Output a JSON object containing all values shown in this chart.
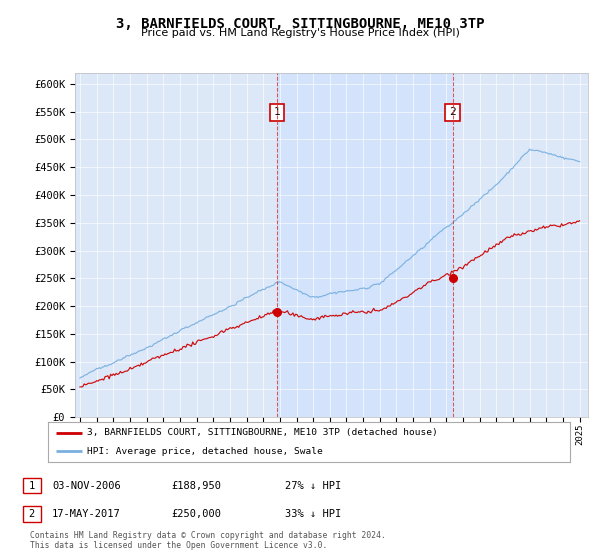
{
  "title": "3, BARNFIELDS COURT, SITTINGBOURNE, ME10 3TP",
  "subtitle": "Price paid vs. HM Land Registry's House Price Index (HPI)",
  "ylim": [
    0,
    620000
  ],
  "yticks": [
    0,
    50000,
    100000,
    150000,
    200000,
    250000,
    300000,
    350000,
    400000,
    450000,
    500000,
    550000,
    600000
  ],
  "ytick_labels": [
    "£0",
    "£50K",
    "£100K",
    "£150K",
    "£200K",
    "£250K",
    "£300K",
    "£350K",
    "£400K",
    "£450K",
    "£500K",
    "£550K",
    "£600K"
  ],
  "hpi_color": "#7ab0e0",
  "price_color": "#cc0000",
  "marker1_year": 2006.84,
  "marker1_price": 188950,
  "marker2_year": 2017.37,
  "marker2_price": 250000,
  "vline_color": "#dd4444",
  "shade_color": "#cce0ff",
  "legend_label_price": "3, BARNFIELDS COURT, SITTINGBOURNE, ME10 3TP (detached house)",
  "legend_label_hpi": "HPI: Average price, detached house, Swale",
  "table_row1": [
    "1",
    "03-NOV-2006",
    "£188,950",
    "27% ↓ HPI"
  ],
  "table_row2": [
    "2",
    "17-MAY-2017",
    "£250,000",
    "33% ↓ HPI"
  ],
  "footer": "Contains HM Land Registry data © Crown copyright and database right 2024.\nThis data is licensed under the Open Government Licence v3.0.",
  "background_color": "#ffffff",
  "plot_bg_color": "#dce8f8"
}
